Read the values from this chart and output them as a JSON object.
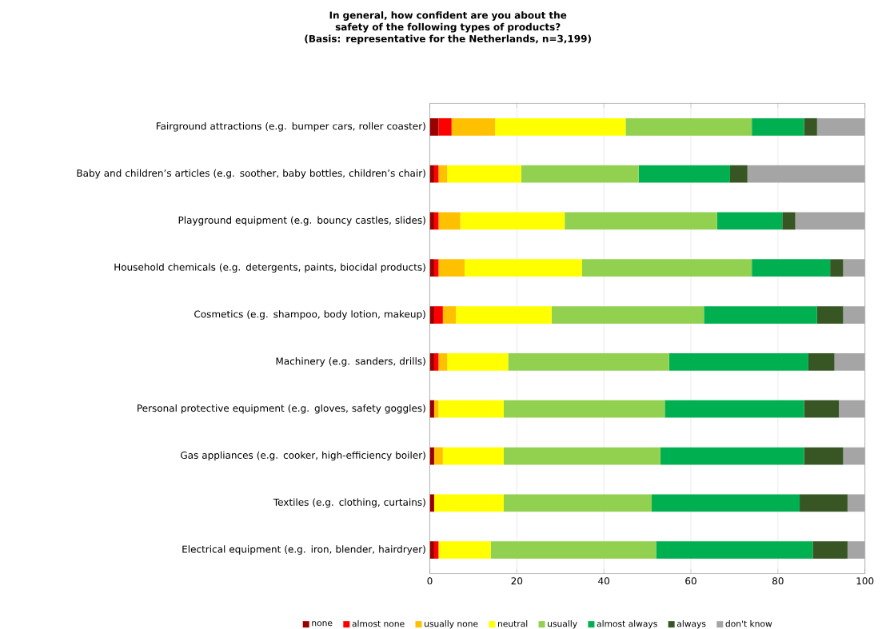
{
  "chart_data": {
    "type": "bar",
    "orientation": "horizontal",
    "stacked": true,
    "title": "In general, how confident are you about the safety of the following types of products?",
    "subtitle": "(Basis: representative for the Netherlands, n=3,199)",
    "categories": [
      "Fairground attractions (e.g. bumper cars, roller coaster)",
      "Baby and children’s articles (e.g. soother, baby bottles, children’s chair)",
      "Playground equipment (e.g. bouncy castles, slides)",
      "Household chemicals (e.g. detergents, paints, biocidal products)",
      "Cosmetics (e.g. shampoo, body lotion, makeup)",
      "Machinery (e.g. sanders, drills)",
      "Personal protective equipment (e.g. gloves, safety goggles)",
      "Gas appliances (e.g. cooker, high-efficiency boiler)",
      "Textiles (e.g. clothing, curtains)",
      "Electrical equipment (e.g. iron, blender, hairdryer)"
    ],
    "series": [
      {
        "name": "none",
        "color": "#990000",
        "values": [
          2,
          1,
          1,
          1,
          1,
          1,
          1,
          1,
          1,
          1
        ]
      },
      {
        "name": "almost none",
        "color": "#ff0000",
        "values": [
          3,
          1,
          1,
          1,
          2,
          1,
          0,
          0,
          0,
          1
        ]
      },
      {
        "name": "usually none",
        "color": "#ffc000",
        "values": [
          10,
          2,
          5,
          6,
          3,
          2,
          1,
          2,
          0,
          0
        ]
      },
      {
        "name": "neutral",
        "color": "#ffff00",
        "values": [
          30,
          17,
          24,
          27,
          22,
          14,
          15,
          14,
          16,
          12
        ]
      },
      {
        "name": "usually",
        "color": "#92d050",
        "values": [
          29,
          27,
          35,
          39,
          35,
          37,
          37,
          36,
          34,
          38
        ]
      },
      {
        "name": "almost always",
        "color": "#00b050",
        "values": [
          12,
          21,
          15,
          18,
          26,
          32,
          32,
          33,
          34,
          36
        ]
      },
      {
        "name": "always",
        "color": "#375623",
        "values": [
          3,
          4,
          3,
          3,
          6,
          6,
          8,
          9,
          11,
          8
        ]
      },
      {
        "name": "don't know",
        "color": "#a5a5a5",
        "values": [
          11,
          27,
          16,
          5,
          5,
          7,
          6,
          5,
          4,
          4
        ]
      }
    ],
    "xlim": [
      0,
      100
    ],
    "xticks": [
      0,
      20,
      40,
      60,
      80,
      100
    ],
    "grid": "x",
    "legend": "bottom"
  }
}
